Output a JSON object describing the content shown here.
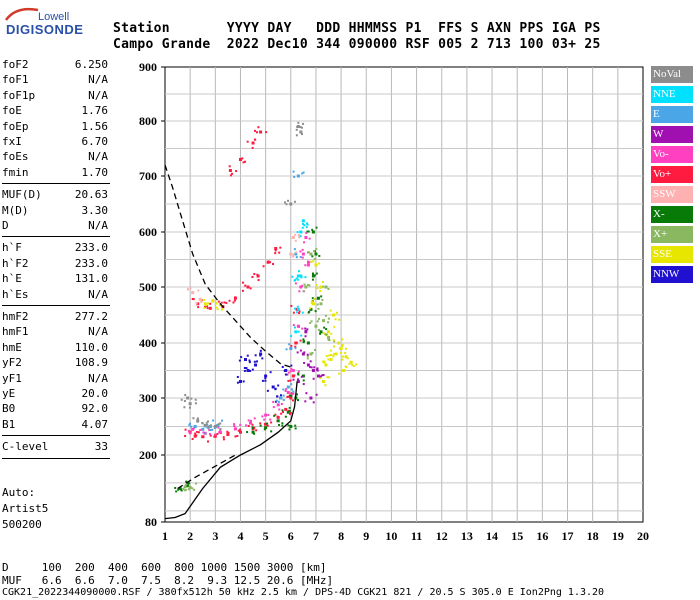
{
  "logo": {
    "top": "Lowell",
    "main": "DIGISONDE"
  },
  "header": {
    "line1": "Station       YYYY DAY   DDD HHMMSS P1  FFS S AXN PPS IGA PS",
    "line2": "Campo Grande  2022 Dec10 344 090000 RSF 005 2 713 100 03+ 25"
  },
  "params": [
    {
      "label": "foF2",
      "value": "6.250"
    },
    {
      "label": "foF1",
      "value": "N/A"
    },
    {
      "label": "foF1p",
      "value": "N/A"
    },
    {
      "label": "foE",
      "value": "1.76"
    },
    {
      "label": "foEp",
      "value": "1.56"
    },
    {
      "label": "fxI",
      "value": "6.70"
    },
    {
      "label": "foEs",
      "value": "N/A"
    },
    {
      "label": "fmin",
      "value": "1.70"
    },
    {
      "label": "MUF(D)",
      "value": "20.63"
    },
    {
      "label": "M(D)",
      "value": "3.30"
    },
    {
      "label": "D",
      "value": "N/A"
    },
    {
      "label": "h`F",
      "value": "233.0"
    },
    {
      "label": "h`F2",
      "value": "233.0"
    },
    {
      "label": "h`E",
      "value": "131.0"
    },
    {
      "label": "h`Es",
      "value": "N/A"
    },
    {
      "label": "hmF2",
      "value": "277.2"
    },
    {
      "label": "hmF1",
      "value": "N/A"
    },
    {
      "label": "hmE",
      "value": "110.0"
    },
    {
      "label": "yF2",
      "value": "108.9"
    },
    {
      "label": "yF1",
      "value": "N/A"
    },
    {
      "label": "yE",
      "value": "20.0"
    },
    {
      "label": "B0",
      "value": "92.0"
    },
    {
      "label": "B1",
      "value": "4.07"
    },
    {
      "label": "C-level",
      "value": "33"
    }
  ],
  "auto": {
    "line1": "Auto:",
    "line2": "Artist5",
    "line3": "500200"
  },
  "legend": [
    {
      "label": "NoVal",
      "color": "#8c8c8c"
    },
    {
      "label": "NNE",
      "color": "#00e0ff"
    },
    {
      "label": "E",
      "color": "#4aa6e6"
    },
    {
      "label": "W",
      "color": "#a010b0"
    },
    {
      "label": "Vo-",
      "color": "#ff40c0"
    },
    {
      "label": "Vo+",
      "color": "#ff1a40"
    },
    {
      "label": "SSW",
      "color": "#ffb0b0"
    },
    {
      "label": "X-",
      "color": "#087a08"
    },
    {
      "label": "X+",
      "color": "#8ab860"
    },
    {
      "label": "SSE",
      "color": "#e6e600"
    },
    {
      "label": "NNW",
      "color": "#2010d0"
    }
  ],
  "footer": {
    "line1": "D     100  200  400  600  800 1000 1500 3000 [km]",
    "line2": "MUF   6.6  6.6  7.0  7.5  8.2  9.3 12.5 20.6 [MHz]",
    "line3": "CGK21_2022344090000.RSF / 380fx512h 50 kHz 2.5 km / DPS-4D CGK21 821 / 20.5 S 305.0 E Ion2Png 1.3.20"
  },
  "chart_data": {
    "type": "scatter",
    "xlim": [
      1,
      20
    ],
    "ylim": [
      80,
      900
    ],
    "x_ticks": [
      1,
      2,
      3,
      4,
      5,
      6,
      7,
      8,
      9,
      10,
      11,
      12,
      13,
      14,
      15,
      16,
      17,
      18,
      19,
      20
    ],
    "y_ticks": [
      80,
      200,
      300,
      400,
      500,
      600,
      700,
      800,
      900
    ],
    "grid": true,
    "profile_solid": [
      [
        1.0,
        86
      ],
      [
        1.4,
        88
      ],
      [
        1.8,
        95
      ],
      [
        2.5,
        140
      ],
      [
        3.2,
        178
      ],
      [
        4.0,
        200
      ],
      [
        4.8,
        218
      ],
      [
        5.5,
        240
      ],
      [
        6.0,
        260
      ],
      [
        6.15,
        285
      ],
      [
        6.25,
        330
      ]
    ],
    "profile_dashed": [
      [
        1.0,
        720
      ],
      [
        1.3,
        680
      ],
      [
        1.7,
        620
      ],
      [
        2.1,
        560
      ],
      [
        2.6,
        505
      ],
      [
        3.2,
        470
      ],
      [
        3.8,
        440
      ],
      [
        4.4,
        410
      ],
      [
        5.0,
        385
      ],
      [
        5.6,
        362
      ],
      [
        6.1,
        355
      ]
    ],
    "extrapolation_dashed": [
      [
        1.5,
        140
      ],
      [
        2.2,
        160
      ],
      [
        3.0,
        180
      ],
      [
        3.8,
        200
      ]
    ],
    "series": [
      {
        "name": "Vo+",
        "color": "#ff1a40",
        "points": [
          [
            2.0,
            240
          ],
          [
            2.2,
            233
          ],
          [
            2.5,
            232
          ],
          [
            3.0,
            233
          ],
          [
            3.5,
            236
          ],
          [
            4.0,
            240
          ],
          [
            4.5,
            246
          ],
          [
            5.0,
            254
          ],
          [
            5.5,
            266
          ],
          [
            5.8,
            280
          ],
          [
            6.0,
            300
          ],
          [
            6.1,
            340
          ],
          [
            6.2,
            400
          ],
          [
            6.25,
            460
          ],
          [
            2.3,
            470
          ],
          [
            2.8,
            462
          ],
          [
            3.3,
            465
          ],
          [
            3.8,
            480
          ],
          [
            4.3,
            500
          ],
          [
            4.7,
            520
          ],
          [
            5.1,
            545
          ],
          [
            5.4,
            570
          ],
          [
            3.6,
            710
          ],
          [
            4.0,
            730
          ],
          [
            4.5,
            760
          ],
          [
            4.8,
            780
          ]
        ]
      },
      {
        "name": "Vo-",
        "color": "#ff40c0",
        "points": [
          [
            2.1,
            245
          ],
          [
            2.6,
            238
          ],
          [
            3.2,
            240
          ],
          [
            3.8,
            246
          ],
          [
            4.4,
            256
          ],
          [
            5.0,
            270
          ],
          [
            5.5,
            288
          ],
          [
            5.9,
            310
          ],
          [
            6.1,
            350
          ],
          [
            6.3,
            430
          ],
          [
            6.4,
            500
          ],
          [
            6.5,
            560
          ],
          [
            6.6,
            590
          ],
          [
            6.7,
            540
          ]
        ]
      },
      {
        "name": "X-",
        "color": "#087a08",
        "points": [
          [
            4.5,
            240
          ],
          [
            5.0,
            248
          ],
          [
            5.5,
            260
          ],
          [
            5.9,
            275
          ],
          [
            6.2,
            300
          ],
          [
            6.5,
            340
          ],
          [
            6.7,
            400
          ],
          [
            6.8,
            460
          ],
          [
            6.9,
            520
          ],
          [
            7.0,
            560
          ],
          [
            6.9,
            600
          ],
          [
            7.1,
            480
          ],
          [
            7.2,
            420
          ],
          [
            6.0,
            250
          ],
          [
            1.6,
            140
          ],
          [
            1.9,
            145
          ]
        ]
      },
      {
        "name": "X+",
        "color": "#8ab860",
        "points": [
          [
            6.8,
            380
          ],
          [
            7.0,
            430
          ],
          [
            7.2,
            470
          ],
          [
            7.4,
            500
          ],
          [
            7.3,
            440
          ],
          [
            7.5,
            410
          ],
          [
            6.6,
            500
          ],
          [
            6.8,
            560
          ],
          [
            1.8,
            143
          ],
          [
            2.0,
            142
          ]
        ]
      },
      {
        "name": "SSE",
        "color": "#e6e600",
        "points": [
          [
            7.4,
            360
          ],
          [
            7.6,
            370
          ],
          [
            7.8,
            380
          ],
          [
            8.0,
            390
          ],
          [
            8.2,
            375
          ],
          [
            8.4,
            365
          ],
          [
            7.5,
            420
          ],
          [
            7.7,
            450
          ],
          [
            7.9,
            400
          ],
          [
            8.1,
            350
          ],
          [
            7.2,
            500
          ],
          [
            7.0,
            540
          ],
          [
            6.9,
            470
          ],
          [
            7.3,
            330
          ],
          [
            2.6,
            470
          ],
          [
            2.9,
            475
          ],
          [
            3.2,
            468
          ]
        ]
      },
      {
        "name": "W",
        "color": "#a010b0",
        "points": [
          [
            6.5,
            380
          ],
          [
            6.7,
            360
          ],
          [
            6.9,
            350
          ],
          [
            7.1,
            340
          ],
          [
            6.6,
            420
          ],
          [
            6.8,
            300
          ],
          [
            6.3,
            330
          ]
        ]
      },
      {
        "name": "NNW",
        "color": "#2010d0",
        "points": [
          [
            4.0,
            330
          ],
          [
            4.3,
            350
          ],
          [
            4.6,
            360
          ],
          [
            5.0,
            340
          ],
          [
            5.3,
            320
          ],
          [
            5.6,
            300
          ],
          [
            5.8,
            350
          ],
          [
            4.8,
            380
          ],
          [
            4.2,
            370
          ]
        ]
      },
      {
        "name": "NNE",
        "color": "#00e0ff",
        "points": [
          [
            6.2,
            420
          ],
          [
            6.3,
            460
          ],
          [
            6.4,
            520
          ],
          [
            6.5,
            620
          ],
          [
            6.4,
            600
          ],
          [
            6.3,
            520
          ]
        ]
      },
      {
        "name": "E",
        "color": "#4aa6e6",
        "points": [
          [
            2.2,
            250
          ],
          [
            2.5,
            245
          ],
          [
            2.8,
            250
          ],
          [
            3.1,
            252
          ],
          [
            5.6,
            300
          ],
          [
            5.9,
            320
          ],
          [
            6.0,
            390
          ],
          [
            6.2,
            560
          ],
          [
            6.3,
            700
          ]
        ]
      },
      {
        "name": "NoVal",
        "color": "#8c8c8c",
        "points": [
          [
            1.9,
            300
          ],
          [
            2.0,
            290
          ],
          [
            2.3,
            260
          ],
          [
            2.6,
            252
          ],
          [
            3.0,
            250
          ],
          [
            6.3,
            790
          ],
          [
            6.4,
            780
          ],
          [
            6.0,
            650
          ]
        ]
      },
      {
        "name": "SSW",
        "color": "#ffb0b0",
        "points": [
          [
            2.1,
            490
          ],
          [
            2.4,
            478
          ],
          [
            6.1,
            590
          ],
          [
            6.0,
            560
          ]
        ]
      }
    ]
  }
}
